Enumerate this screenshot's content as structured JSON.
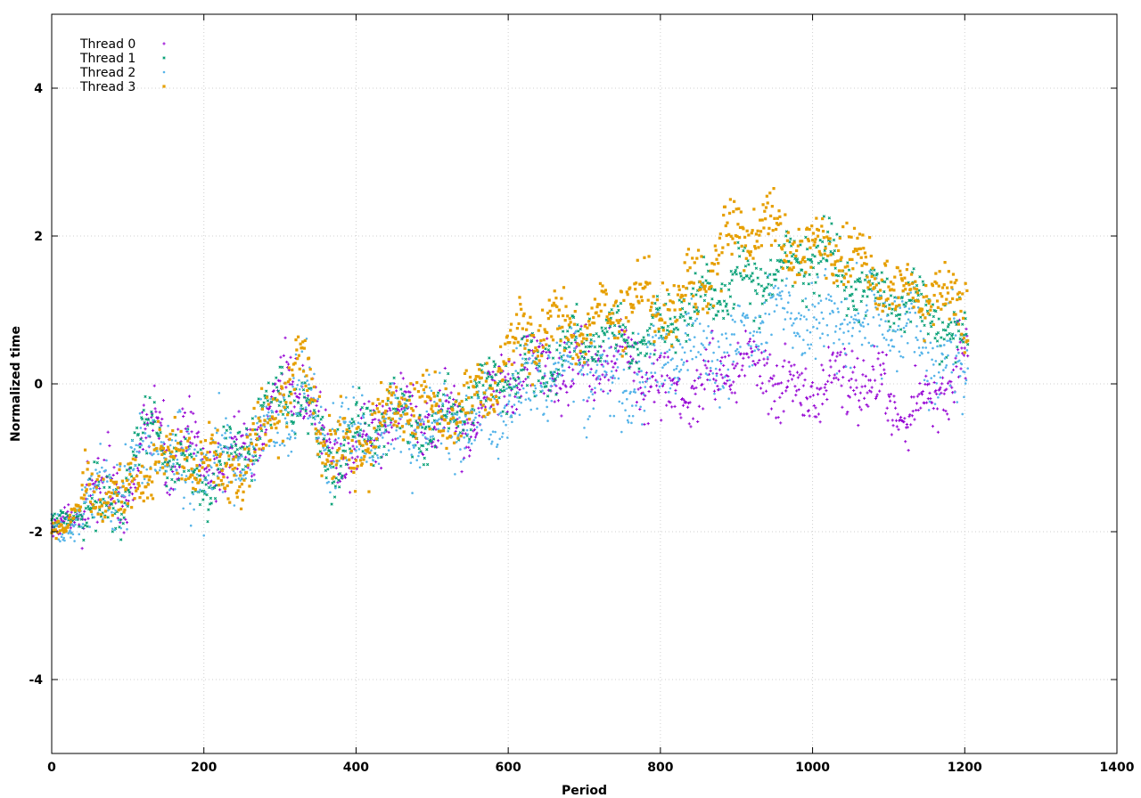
{
  "chart_data": {
    "type": "scatter",
    "title": "",
    "xlabel": "Period",
    "ylabel": "Normalized time",
    "xlim": [
      0,
      1400
    ],
    "ylim": [
      -5,
      5
    ],
    "x_ticks": [
      0,
      200,
      400,
      600,
      800,
      1000,
      1200,
      1400
    ],
    "y_ticks": [
      -4,
      -2,
      0,
      2,
      4
    ],
    "grid": true,
    "legend_position": "top-left",
    "x_count": 1205,
    "series": [
      {
        "name": "Thread 0",
        "color": "#9400d3",
        "marker": "plus",
        "trend_x": [
          0,
          20,
          50,
          100,
          140,
          150,
          200,
          250,
          300,
          330,
          360,
          400,
          450,
          500,
          550,
          600,
          650,
          700,
          750,
          800,
          850,
          900,
          950,
          1000,
          1050,
          1100,
          1150,
          1200
        ],
        "trend_y": [
          -2.0,
          -1.9,
          -1.6,
          -1.3,
          -0.4,
          -0.9,
          -1.1,
          -0.9,
          -0.2,
          -0.1,
          -0.9,
          -0.8,
          -0.4,
          -0.5,
          -0.4,
          0.0,
          0.2,
          0.3,
          0.2,
          0.0,
          0.0,
          0.2,
          0.1,
          -0.1,
          0.0,
          -0.2,
          -0.3,
          0.2
        ],
        "spread": 0.32
      },
      {
        "name": "Thread 1",
        "color": "#009e73",
        "marker": "cross",
        "trend_x": [
          0,
          20,
          50,
          100,
          140,
          150,
          200,
          250,
          300,
          330,
          360,
          400,
          450,
          500,
          550,
          600,
          650,
          700,
          750,
          800,
          850,
          900,
          950,
          1000,
          1050,
          1100,
          1150,
          1200
        ],
        "trend_y": [
          -2.0,
          -1.85,
          -1.55,
          -1.35,
          -0.6,
          -1.0,
          -1.15,
          -1.0,
          -0.3,
          -0.1,
          -0.9,
          -0.8,
          -0.45,
          -0.5,
          -0.3,
          0.1,
          0.4,
          0.5,
          0.6,
          0.8,
          1.0,
          1.4,
          1.6,
          1.6,
          1.5,
          1.2,
          0.9,
          0.6
        ],
        "spread": 0.28
      },
      {
        "name": "Thread 2",
        "color": "#56b4e9",
        "marker": "star",
        "trend_x": [
          0,
          20,
          50,
          100,
          140,
          150,
          200,
          250,
          300,
          330,
          360,
          400,
          450,
          500,
          550,
          600,
          650,
          700,
          750,
          800,
          850,
          900,
          950,
          1000,
          1050,
          1100,
          1150,
          1200
        ],
        "trend_y": [
          -2.0,
          -1.9,
          -1.6,
          -1.4,
          -0.6,
          -1.0,
          -1.2,
          -1.1,
          -0.3,
          -0.1,
          -0.9,
          -0.8,
          -0.5,
          -0.6,
          -0.6,
          -0.2,
          0.1,
          0.2,
          0.0,
          0.2,
          0.4,
          0.6,
          0.8,
          1.0,
          0.9,
          0.7,
          0.5,
          0.3
        ],
        "spread": 0.4
      },
      {
        "name": "Thread 3",
        "color": "#e69f00",
        "marker": "box",
        "trend_x": [
          0,
          20,
          50,
          100,
          140,
          150,
          200,
          250,
          300,
          330,
          360,
          400,
          450,
          500,
          550,
          600,
          650,
          700,
          750,
          800,
          850,
          900,
          950,
          1000,
          1050,
          1100,
          1150,
          1200
        ],
        "trend_y": [
          -2.0,
          -1.85,
          -1.6,
          -1.4,
          -0.7,
          -1.1,
          -1.2,
          -1.0,
          -0.2,
          0.1,
          -0.9,
          -0.85,
          -0.35,
          -0.45,
          -0.2,
          0.3,
          0.7,
          0.9,
          0.9,
          1.0,
          1.4,
          1.9,
          2.1,
          1.9,
          1.6,
          1.4,
          1.3,
          0.9
        ],
        "spread": 0.3
      }
    ]
  }
}
